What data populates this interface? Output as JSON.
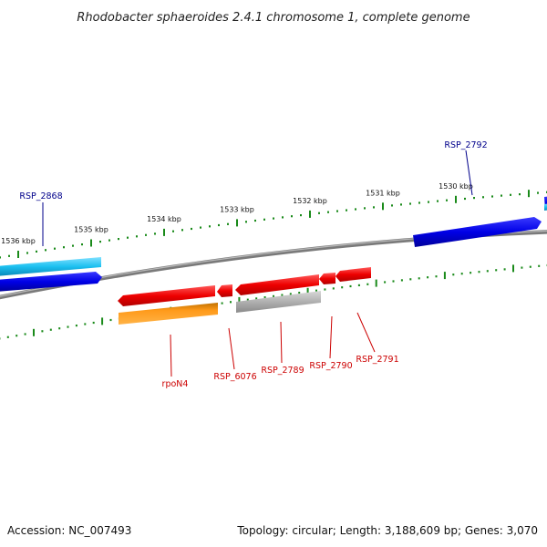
{
  "title": "Rhodobacter sphaeroides 2.4.1 chromosome 1, complete genome",
  "footer": {
    "accession": "Accession: NC_007493",
    "summary": "Topology: circular; Length: 3,188,609 bp; Genes: 3,070"
  },
  "scale": {
    "ticks": [
      {
        "label": "1536 kbp"
      },
      {
        "label": "1535 kbp"
      },
      {
        "label": "1534 kbp"
      },
      {
        "label": "1533 kbp"
      },
      {
        "label": "1532 kbp"
      },
      {
        "label": "1531 kbp"
      },
      {
        "label": "1530 kbp"
      }
    ]
  },
  "genes": {
    "top": [
      {
        "label": "RSP_2868",
        "color": "#00008b"
      },
      {
        "label": "RSP_2792",
        "color": "#00008b"
      }
    ],
    "bottom": [
      {
        "label": "rpoN4",
        "color": "#cc0000"
      },
      {
        "label": "RSP_6076",
        "color": "#cc0000"
      },
      {
        "label": "RSP_2789",
        "color": "#cc0000"
      },
      {
        "label": "RSP_2790",
        "color": "#cc0000"
      },
      {
        "label": "RSP_2791",
        "color": "#cc0000"
      }
    ]
  },
  "colors": {
    "forward_gene": "#0000ee",
    "forward_rna": "#00b4e6",
    "reverse_gene": "#ee0000",
    "reverse_orange": "#ff8c00",
    "pseudo_gray": "#aaaaaa",
    "backbone": "#808080",
    "tick_green": "#1a8a1a"
  }
}
